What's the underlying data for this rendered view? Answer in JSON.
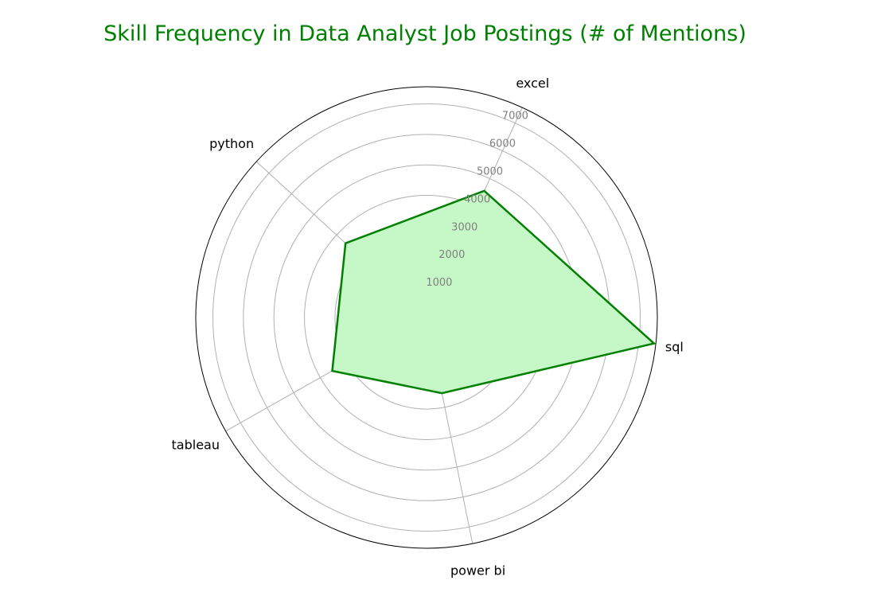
{
  "chart_data": {
    "type": "radar",
    "title": "Skill Frequency in Data Analyst Job Postings (# of Mentions)",
    "categories": [
      "sql",
      "excel",
      "python",
      "tableau",
      "power bi"
    ],
    "series": [
      {
        "values": [
          7500,
          4560,
          3600,
          3550,
          2530
        ]
      }
    ],
    "r_ticks": [
      "1000",
      "2000",
      "3000",
      "4000",
      "5000",
      "6000",
      "7000"
    ],
    "r_tick_values": [
      1000,
      2000,
      3000,
      4000,
      5000,
      6000,
      7000
    ],
    "rlim": [
      0,
      7560
    ],
    "grid": true,
    "colors": {
      "title": "#008000",
      "line": "#008000",
      "fill": "#c6f7c6"
    }
  }
}
